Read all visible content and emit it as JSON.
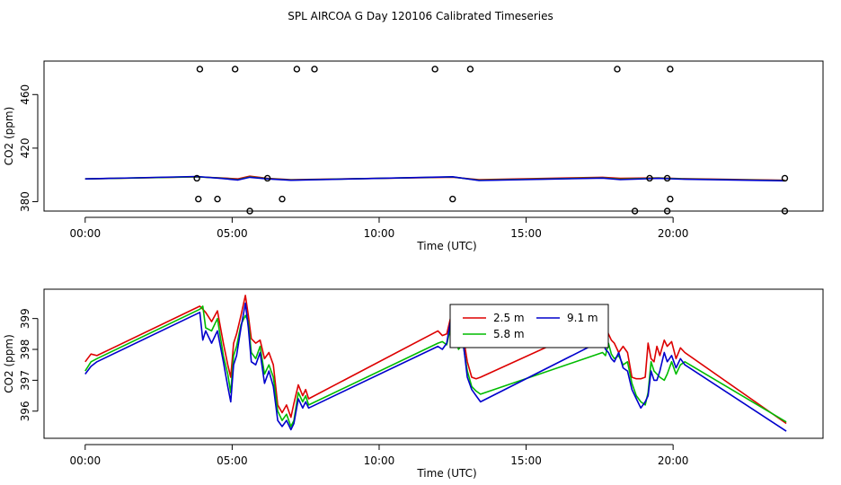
{
  "title": "SPL AIRCOA G  Day 120106  Calibrated Timeseries",
  "chart_data": [
    {
      "type": "line",
      "panel": "top",
      "xlabel": "Time (UTC)",
      "ylabel": "CO2 (ppm)",
      "xlim": [
        -1.4,
        25.1
      ],
      "ylim": [
        373,
        485
      ],
      "xticks": [
        0,
        5,
        10,
        15,
        20
      ],
      "xtick_labels": [
        "00:00",
        "05:00",
        "10:00",
        "15:00",
        "20:00"
      ],
      "yticks": [
        380,
        420,
        460
      ],
      "ytick_labels": [
        "380",
        "420",
        "460"
      ],
      "series": [
        {
          "name": "2.5 m",
          "color": "#dd0000",
          "x": [
            0,
            3.8,
            4.6,
            5.2,
            5.6,
            6.2,
            7.0,
            12.5,
            13.4,
            17.6,
            18.2,
            19.5,
            20.3,
            23.8
          ],
          "y": [
            397,
            398.5,
            397.8,
            397.0,
            399.0,
            397.5,
            396.5,
            398.3,
            396.5,
            398.2,
            397.5,
            397.8,
            397.2,
            396
          ]
        },
        {
          "name": "5.8 m",
          "color": "#00bb00",
          "x": [
            0,
            3.8,
            4.6,
            5.2,
            5.6,
            6.2,
            7.0,
            12.5,
            13.4,
            17.6,
            18.2,
            19.5,
            20.3,
            23.8
          ],
          "y": [
            397,
            398.6,
            397.6,
            396.5,
            398.5,
            397.2,
            396.2,
            398.5,
            396.0,
            397.8,
            396.8,
            397.6,
            397.0,
            395.8
          ]
        },
        {
          "name": "9.1 m",
          "color": "#0000cc",
          "x": [
            0,
            3.8,
            4.6,
            5.2,
            5.6,
            6.2,
            7.0,
            12.5,
            13.4,
            17.6,
            18.2,
            19.5,
            20.3,
            23.8
          ],
          "y": [
            397,
            398.8,
            397.4,
            396.2,
            398.2,
            397.0,
            396.0,
            398.6,
            395.8,
            397.6,
            396.5,
            397.4,
            396.8,
            395.6
          ]
        }
      ],
      "points": {
        "x": [
          3.9,
          5.1,
          7.2,
          7.8,
          11.9,
          13.1,
          18.1,
          19.9,
          3.8,
          6.2,
          19.2,
          19.8,
          23.8,
          3.85,
          4.5,
          6.7,
          12.5,
          19.9,
          5.6,
          18.7,
          19.8,
          23.8
        ],
        "y": [
          479,
          479,
          479,
          479,
          479,
          479,
          479,
          479,
          397.5,
          397.5,
          397.5,
          397.5,
          397.5,
          382,
          382,
          382,
          382,
          382,
          373,
          373,
          373,
          373
        ]
      }
    },
    {
      "type": "line",
      "panel": "bottom",
      "xlabel": "Time (UTC)",
      "ylabel": "CO2 (ppm)",
      "xlim": [
        -1.4,
        25.1
      ],
      "ylim": [
        395.12,
        399.95
      ],
      "xticks": [
        0,
        5,
        10,
        15,
        20
      ],
      "xtick_labels": [
        "00:00",
        "05:00",
        "10:00",
        "15:00",
        "20:00"
      ],
      "yticks": [
        396,
        397,
        398,
        399
      ],
      "ytick_labels": [
        "396",
        "397",
        "398",
        "399"
      ],
      "legend": {
        "position": "top-center",
        "columns": 2
      },
      "series": [
        {
          "name": "2.5 m",
          "color": "#dd0000",
          "x": [
            0.0,
            0.2,
            0.4,
            3.9,
            4.0,
            4.1,
            4.3,
            4.5,
            4.7,
            4.85,
            4.95,
            5.05,
            5.15,
            5.3,
            5.45,
            5.55,
            5.65,
            5.8,
            5.95,
            6.1,
            6.25,
            6.4,
            6.55,
            6.7,
            6.85,
            7.0,
            7.1,
            7.25,
            7.4,
            7.5,
            7.6,
            12.0,
            12.15,
            12.3,
            12.45,
            12.55,
            12.7,
            12.85,
            13.0,
            13.15,
            13.3,
            13.45,
            17.6,
            17.7,
            17.8,
            17.9,
            18.0,
            18.15,
            18.3,
            18.45,
            18.6,
            18.75,
            18.9,
            19.05,
            19.15,
            19.25,
            19.35,
            19.45,
            19.55,
            19.7,
            19.8,
            19.95,
            20.1,
            20.25,
            20.4,
            23.85
          ],
          "y": [
            397.6,
            397.85,
            397.8,
            399.4,
            399.3,
            399.2,
            398.9,
            399.25,
            398.2,
            397.5,
            397.1,
            398.2,
            398.5,
            399.1,
            399.75,
            399.1,
            398.35,
            398.2,
            398.3,
            397.7,
            397.9,
            397.5,
            396.2,
            395.95,
            396.2,
            395.8,
            396.25,
            396.85,
            396.5,
            396.7,
            396.4,
            398.6,
            398.45,
            398.5,
            399.1,
            398.95,
            398.3,
            398.5,
            397.6,
            397.1,
            397.05,
            397.1,
            398.9,
            398.75,
            398.5,
            398.3,
            398.2,
            397.9,
            398.1,
            397.9,
            397.1,
            397.05,
            397.05,
            397.1,
            398.2,
            397.7,
            397.6,
            398.1,
            397.8,
            398.3,
            398.1,
            398.25,
            397.7,
            398.05,
            397.9,
            395.6
          ]
        },
        {
          "name": "5.8 m",
          "color": "#00bb00",
          "x": [
            0.0,
            0.2,
            0.4,
            3.9,
            4.0,
            4.1,
            4.3,
            4.5,
            4.7,
            4.85,
            4.95,
            5.05,
            5.15,
            5.3,
            5.45,
            5.55,
            5.65,
            5.8,
            5.95,
            6.1,
            6.25,
            6.4,
            6.55,
            6.7,
            6.85,
            7.0,
            7.1,
            7.25,
            7.4,
            7.5,
            7.6,
            12.0,
            12.15,
            12.3,
            12.45,
            12.55,
            12.7,
            12.85,
            13.0,
            13.15,
            13.3,
            13.45,
            17.6,
            17.7,
            17.8,
            17.9,
            18.0,
            18.15,
            18.3,
            18.45,
            18.6,
            18.75,
            18.9,
            19.05,
            19.15,
            19.25,
            19.35,
            19.45,
            19.55,
            19.7,
            19.8,
            19.95,
            20.1,
            20.25,
            20.4,
            23.85
          ],
          "y": [
            397.3,
            397.6,
            397.7,
            399.3,
            399.4,
            398.7,
            398.6,
            399.0,
            397.8,
            397.2,
            396.6,
            397.8,
            398.1,
            398.8,
            399.1,
            398.9,
            397.9,
            397.7,
            398.1,
            397.2,
            397.5,
            397.1,
            396.0,
            395.7,
            395.9,
            395.5,
            395.7,
            396.6,
            396.3,
            396.5,
            396.2,
            398.2,
            398.25,
            398.15,
            398.8,
            398.6,
            398.0,
            398.2,
            397.3,
            396.8,
            396.65,
            396.55,
            397.9,
            397.8,
            398.2,
            397.85,
            397.7,
            397.8,
            397.5,
            397.6,
            396.9,
            396.5,
            396.3,
            396.2,
            396.6,
            397.6,
            397.3,
            397.2,
            397.1,
            397.0,
            397.2,
            397.6,
            397.2,
            397.5,
            397.6,
            395.65
          ]
        },
        {
          "name": "9.1 m",
          "color": "#0000cc",
          "x": [
            0.0,
            0.2,
            0.4,
            3.9,
            4.0,
            4.1,
            4.3,
            4.5,
            4.7,
            4.85,
            4.95,
            5.05,
            5.15,
            5.3,
            5.45,
            5.55,
            5.65,
            5.8,
            5.95,
            6.1,
            6.25,
            6.4,
            6.55,
            6.7,
            6.85,
            7.0,
            7.1,
            7.25,
            7.4,
            7.5,
            7.6,
            12.0,
            12.15,
            12.3,
            12.45,
            12.55,
            12.7,
            12.85,
            13.0,
            13.15,
            13.3,
            13.45,
            17.6,
            17.7,
            17.8,
            17.9,
            18.0,
            18.15,
            18.3,
            18.45,
            18.6,
            18.75,
            18.9,
            19.05,
            19.15,
            19.25,
            19.35,
            19.45,
            19.55,
            19.7,
            19.8,
            19.95,
            20.1,
            20.25,
            20.4,
            23.85
          ],
          "y": [
            397.2,
            397.45,
            397.6,
            399.2,
            398.3,
            398.6,
            398.2,
            398.6,
            397.6,
            396.8,
            396.3,
            397.5,
            397.8,
            398.7,
            399.5,
            398.7,
            397.6,
            397.5,
            397.9,
            396.9,
            397.3,
            396.8,
            395.7,
            395.5,
            395.7,
            395.4,
            395.6,
            396.4,
            396.1,
            396.3,
            396.1,
            398.1,
            398.0,
            398.2,
            399.05,
            398.4,
            398.1,
            398.3,
            397.1,
            396.7,
            396.5,
            396.3,
            398.3,
            398.0,
            397.9,
            397.7,
            397.6,
            397.9,
            397.4,
            397.3,
            396.7,
            396.4,
            396.1,
            396.3,
            396.5,
            397.3,
            397.0,
            397.0,
            397.3,
            397.9,
            397.6,
            397.8,
            397.4,
            397.7,
            397.5,
            395.35
          ]
        }
      ]
    }
  ]
}
